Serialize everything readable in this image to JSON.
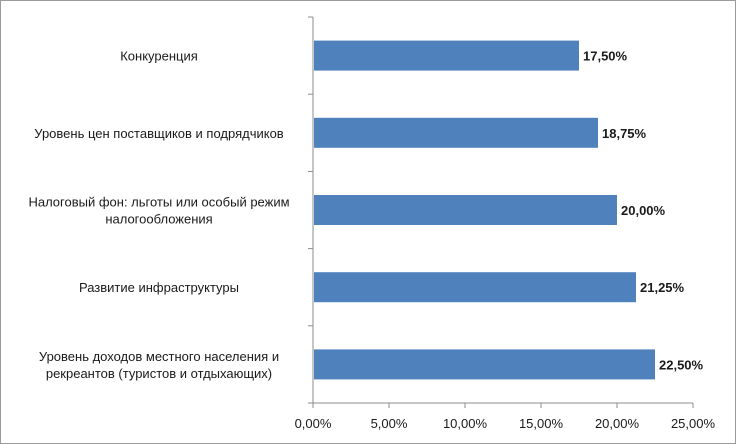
{
  "chart_data": {
    "type": "bar",
    "orientation": "horizontal",
    "categories": [
      [
        "Конкуренция"
      ],
      [
        "Уровень цен поставщиков и подрядчиков"
      ],
      [
        "Налоговый фон: льготы или особый режим",
        "налогообложения"
      ],
      [
        "Развитие инфраструктуры"
      ],
      [
        "Уровень доходов местного населения и",
        "рекреантов (туристов и отдыхающих)"
      ]
    ],
    "values": [
      17.5,
      18.75,
      20.0,
      21.25,
      22.5
    ],
    "value_labels": [
      "17,50%",
      "18,75%",
      "20,00%",
      "21,25%",
      "22,50%"
    ],
    "xlim": [
      0,
      25
    ],
    "x_ticks": [
      0,
      5,
      10,
      15,
      20,
      25
    ],
    "x_tick_labels": [
      "0,00%",
      "5,00%",
      "10,00%",
      "15,00%",
      "20,00%",
      "25,00%"
    ],
    "bar_color": "#4f81bd",
    "grid": false,
    "legend": "none"
  }
}
